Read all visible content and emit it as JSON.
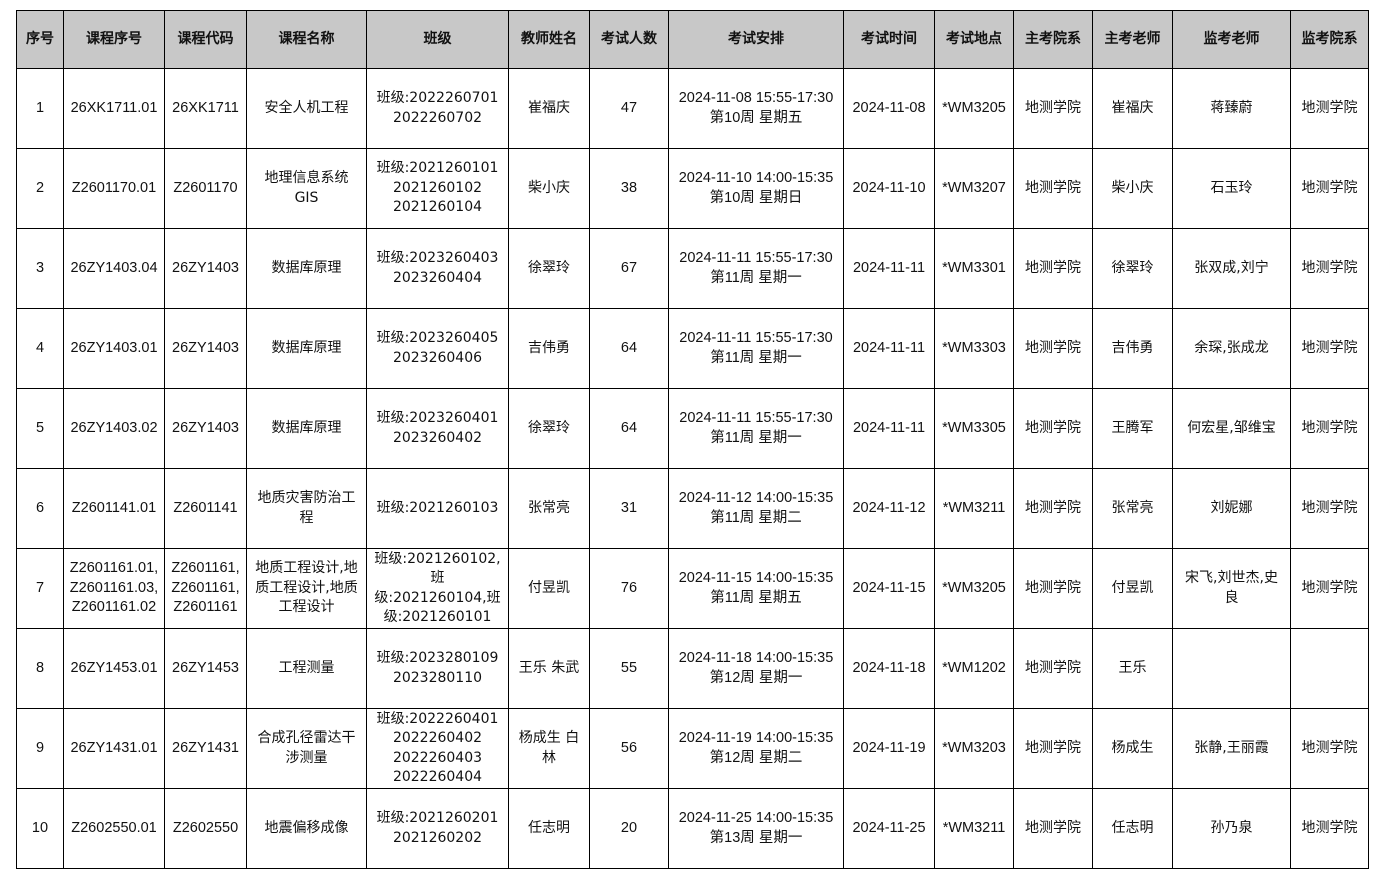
{
  "table": {
    "headers": [
      "序号",
      "课程序号",
      "课程代码",
      "课程名称",
      "班级",
      "教师姓名",
      "考试人数",
      "考试安排",
      "考试时间",
      "考试地点",
      "主考院系",
      "主考老师",
      "监考老师",
      "监考院系"
    ],
    "rows": [
      [
        "1",
        "26XK1711.01",
        "26XK1711",
        "安全人机工程",
        "班级:2022260701\n2022260702",
        "崔福庆",
        "47",
        "2024-11-08 15:55-17:30\n第10周 星期五",
        "2024-11-08",
        "*WM3205",
        "地测学院",
        "崔福庆",
        "蒋臻蔚",
        "地测学院"
      ],
      [
        "2",
        "Z2601170.01",
        "Z2601170",
        "地理信息系统\nGIS",
        "班级:2021260101\n2021260102\n2021260104",
        "柴小庆",
        "38",
        "2024-11-10 14:00-15:35\n第10周 星期日",
        "2024-11-10",
        "*WM3207",
        "地测学院",
        "柴小庆",
        "石玉玲",
        "地测学院"
      ],
      [
        "3",
        "26ZY1403.04",
        "26ZY1403",
        "数据库原理",
        "班级:2023260403\n2023260404",
        "徐翠玲",
        "67",
        "2024-11-11 15:55-17:30\n第11周 星期一",
        "2024-11-11",
        "*WM3301",
        "地测学院",
        "徐翠玲",
        "张双成,刘宁",
        "地测学院"
      ],
      [
        "4",
        "26ZY1403.01",
        "26ZY1403",
        "数据库原理",
        "班级:2023260405\n2023260406",
        "吉伟勇",
        "64",
        "2024-11-11 15:55-17:30\n第11周 星期一",
        "2024-11-11",
        "*WM3303",
        "地测学院",
        "吉伟勇",
        "余琛,张成龙",
        "地测学院"
      ],
      [
        "5",
        "26ZY1403.02",
        "26ZY1403",
        "数据库原理",
        "班级:2023260401\n2023260402",
        "徐翠玲",
        "64",
        "2024-11-11 15:55-17:30\n第11周 星期一",
        "2024-11-11",
        "*WM3305",
        "地测学院",
        "王腾军",
        "何宏星,邹维宝",
        "地测学院"
      ],
      [
        "6",
        "Z2601141.01",
        "Z2601141",
        "地质灾害防治工\n程",
        "班级:2021260103",
        "张常亮",
        "31",
        "2024-11-12 14:00-15:35\n第11周 星期二",
        "2024-11-12",
        "*WM3211",
        "地测学院",
        "张常亮",
        "刘妮娜",
        "地测学院"
      ],
      [
        "7",
        "Z2601161.01,\nZ2601161.03,\nZ2601161.02",
        "Z2601161,\nZ2601161,\nZ2601161",
        "地质工程设计,地\n质工程设计,地质\n工程设计",
        "班级:2021260102,班\n级:2021260104,班\n级:2021260101",
        "付昱凯",
        "76",
        "2024-11-15 14:00-15:35\n第11周 星期五",
        "2024-11-15",
        "*WM3205",
        "地测学院",
        "付昱凯",
        "宋飞,刘世杰,史\n良",
        "地测学院"
      ],
      [
        "8",
        "26ZY1453.01",
        "26ZY1453",
        "工程测量",
        "班级:2023280109\n2023280110",
        "王乐 朱武",
        "55",
        "2024-11-18 14:00-15:35\n第12周 星期一",
        "2024-11-18",
        "*WM1202",
        "地测学院",
        "王乐",
        "",
        ""
      ],
      [
        "9",
        "26ZY1431.01",
        "26ZY1431",
        "合成孔径雷达干\n涉测量",
        "班级:2022260401\n2022260402\n2022260403\n2022260404",
        "杨成生 白\n林",
        "56",
        "2024-11-19 14:00-15:35\n第12周 星期二",
        "2024-11-19",
        "*WM3203",
        "地测学院",
        "杨成生",
        "张静,王丽霞",
        "地测学院"
      ],
      [
        "10",
        "Z2602550.01",
        "Z2602550",
        "地震偏移成像",
        "班级:2021260201\n2021260202",
        "任志明",
        "20",
        "2024-11-25 14:00-15:35\n第13周 星期一",
        "2024-11-25",
        "*WM3211",
        "地测学院",
        "任志明",
        "孙乃泉",
        "地测学院"
      ]
    ]
  }
}
